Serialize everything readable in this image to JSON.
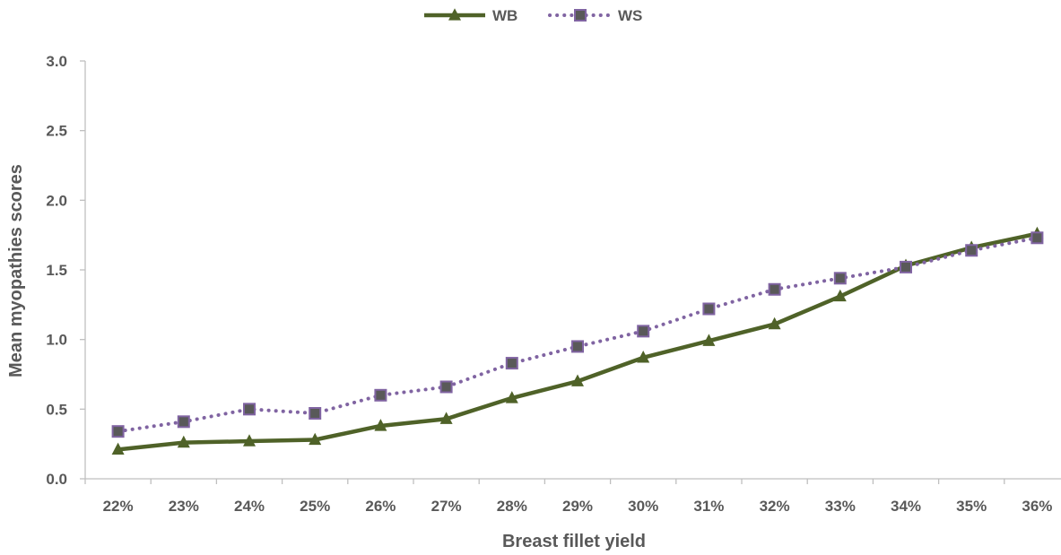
{
  "chart_data": {
    "type": "line",
    "title": "",
    "xlabel": "Breast fillet yield",
    "ylabel": "Mean myopathies scores",
    "categories": [
      "22%",
      "23%",
      "24%",
      "25%",
      "26%",
      "27%",
      "28%",
      "29%",
      "30%",
      "31%",
      "32%",
      "33%",
      "34%",
      "35%",
      "36%"
    ],
    "ylim": [
      0,
      3.0
    ],
    "yticks": [
      "0.0",
      "0.5",
      "1.0",
      "1.5",
      "2.0",
      "2.5",
      "3.0"
    ],
    "grid": false,
    "legend_position": "top-center",
    "series": [
      {
        "name": "WB",
        "color": "#4f6228",
        "line_style": "solid",
        "marker": "triangle",
        "values": [
          0.21,
          0.26,
          0.27,
          0.28,
          0.38,
          0.43,
          0.58,
          0.7,
          0.87,
          0.99,
          1.11,
          1.31,
          1.53,
          1.66,
          1.76
        ]
      },
      {
        "name": "WS",
        "color": "#8064a2",
        "marker_fill": "#595959",
        "line_style": "dotted",
        "marker": "square",
        "values": [
          0.34,
          0.41,
          0.5,
          0.47,
          0.6,
          0.66,
          0.83,
          0.95,
          1.06,
          1.22,
          1.36,
          1.44,
          1.52,
          1.64,
          1.73
        ]
      }
    ]
  }
}
